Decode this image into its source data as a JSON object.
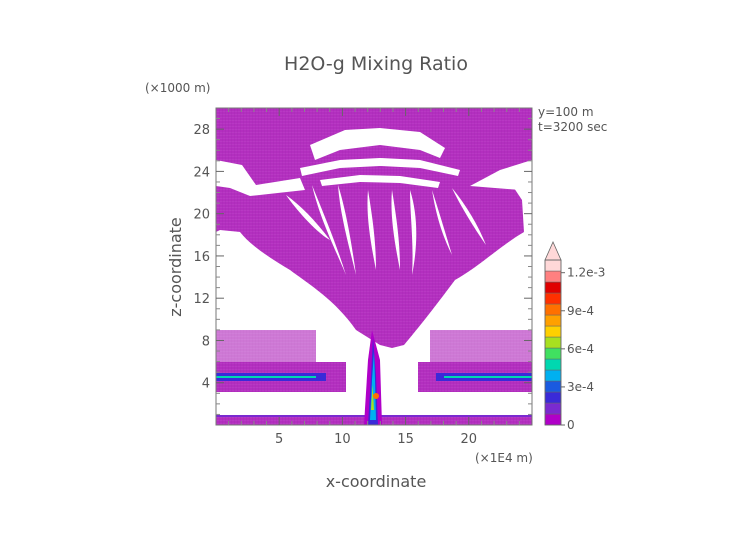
{
  "chart_data": {
    "type": "heatmap",
    "title": "H2O-g Mixing Ratio",
    "xlabel": "x-coordinate",
    "ylabel": "z-coordinate",
    "x_unit": "(×1E4 m)",
    "y_unit": "(×1000 m)",
    "xlim": [
      0,
      25
    ],
    "ylim": [
      0,
      30
    ],
    "x_ticks": [
      "5",
      "10",
      "15",
      "20"
    ],
    "y_ticks": [
      "4",
      "8",
      "12",
      "16",
      "20",
      "24",
      "28"
    ],
    "annotations": [
      "y=100 m",
      "t=3200 sec"
    ],
    "colorbar": {
      "min": 0,
      "max": 0.0013,
      "extend": "max",
      "tick_labels": [
        "0",
        "3e-4",
        "6e-4",
        "9e-4",
        "1.2e-3"
      ],
      "colors": [
        "#b000c8",
        "#7a2ad0",
        "#3a2ad8",
        "#1a5ae0",
        "#00b0f0",
        "#00d8b0",
        "#40e060",
        "#a8e020",
        "#ffd000",
        "#ffa000",
        "#ff7000",
        "#ff3000",
        "#e00000",
        "#ff8080",
        "#ffd8d8"
      ]
    }
  }
}
